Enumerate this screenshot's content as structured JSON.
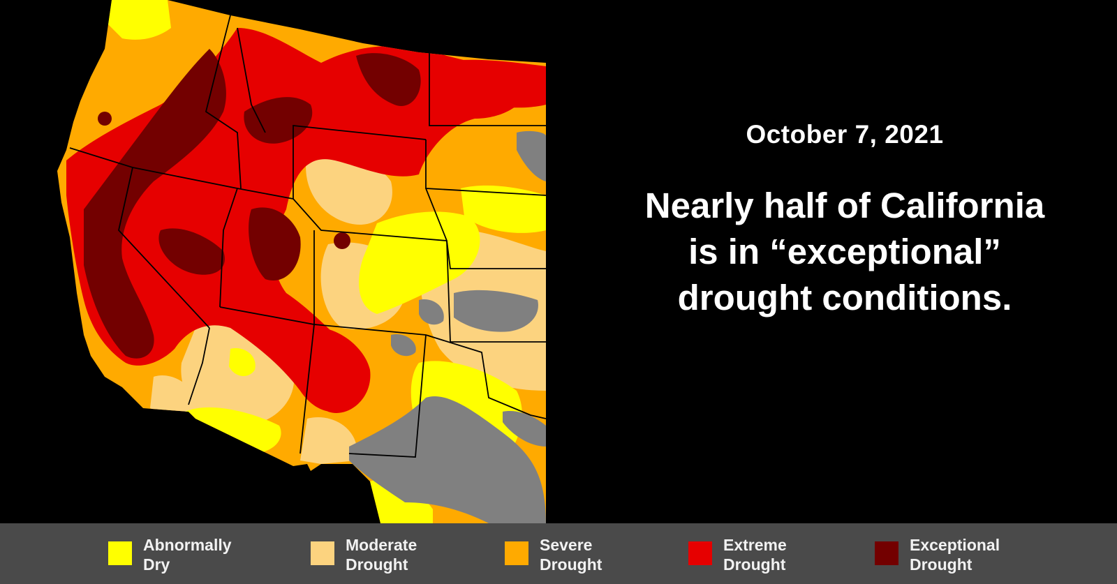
{
  "title": {
    "date": "October 7, 2021",
    "headline_lines": [
      "Nearly half of California",
      "is in “exceptional”",
      "drought conditions."
    ]
  },
  "map": {
    "region": "Western United States",
    "colors": {
      "background": "#000000",
      "abnormally_dry": "#ffff00",
      "moderate": "#fcd37f",
      "severe": "#ffaa00",
      "extreme": "#e60000",
      "exceptional": "#730000",
      "none": "#808080",
      "border": "#000000"
    }
  },
  "legend": {
    "items": [
      {
        "line1": "Abnormally",
        "line2": "Dry",
        "color": "#ffff00"
      },
      {
        "line1": "Moderate",
        "line2": "Drought",
        "color": "#fcd37f"
      },
      {
        "line1": "Severe",
        "line2": "Drought",
        "color": "#ffaa00"
      },
      {
        "line1": "Extreme",
        "line2": "Drought",
        "color": "#e60000"
      },
      {
        "line1": "Exceptional",
        "line2": "Drought",
        "color": "#730000"
      }
    ]
  }
}
